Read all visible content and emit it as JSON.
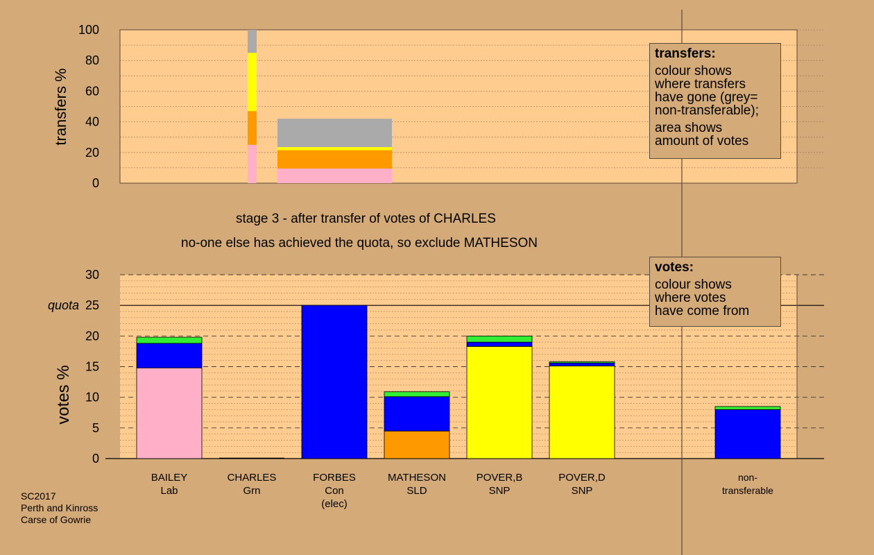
{
  "captions": {
    "stage": "stage 3 - after transfer of votes of CHARLES",
    "action": "no-one else has achieved the quota, so exclude MATHESON"
  },
  "footer": {
    "lines": [
      "SC2017",
      "Perth and Kinross",
      "Carse of Gowrie"
    ]
  },
  "legend_transfers": {
    "title": "transfers:",
    "para1": [
      "colour shows",
      "where transfers",
      "have gone (grey=",
      "non-transferable);"
    ],
    "para2": [
      "area shows",
      "amount of votes"
    ]
  },
  "legend_votes": {
    "title": "votes:",
    "lines": [
      "colour shows",
      "where votes",
      "have come from"
    ]
  },
  "colors": {
    "background": "#d4aa78",
    "plot_area": "#ffcc90",
    "pink": "#ffb0c8",
    "blue": "#0000ff",
    "green": "#33ee33",
    "orange": "#ff9900",
    "yellow": "#ffff00",
    "grey": "#aaaaaa"
  },
  "chart_data": [
    {
      "type": "bar",
      "chart": "transfers",
      "ylabel": "transfers %",
      "ylim": [
        0,
        100
      ],
      "yticks": [
        0,
        20,
        40,
        60,
        80,
        100
      ],
      "bars": [
        {
          "name": "narrow-transfer-bar",
          "segments": [
            {
              "color": "pink",
              "from": 0,
              "to": 25
            },
            {
              "color": "orange",
              "from": 25,
              "to": 47
            },
            {
              "color": "yellow",
              "from": 47,
              "to": 85
            },
            {
              "color": "grey",
              "from": 85,
              "to": 100
            }
          ]
        },
        {
          "name": "wide-transfer-bar",
          "segments": [
            {
              "color": "pink",
              "from": 0,
              "to": 9.5
            },
            {
              "color": "orange",
              "from": 9.5,
              "to": 21.5
            },
            {
              "color": "yellow",
              "from": 21.5,
              "to": 23.5
            },
            {
              "color": "grey",
              "from": 23.5,
              "to": 42
            }
          ]
        }
      ]
    },
    {
      "type": "bar",
      "chart": "votes",
      "ylabel": "votes %",
      "ylim": [
        0,
        30
      ],
      "yticks": [
        0,
        5,
        10,
        15,
        20,
        25,
        30
      ],
      "quota": {
        "label": "quota",
        "value": 25
      },
      "categories": [
        {
          "lines": [
            "BAILEY",
            "Lab"
          ],
          "segments": [
            {
              "color": "pink",
              "value": 14.8
            },
            {
              "color": "blue",
              "value": 4.0
            },
            {
              "color": "green",
              "value": 1.0
            }
          ]
        },
        {
          "lines": [
            "CHARLES",
            "Grn"
          ],
          "segments": []
        },
        {
          "lines": [
            "FORBES",
            "Con",
            "(elec)"
          ],
          "segments": [
            {
              "color": "blue",
              "value": 25.0
            }
          ]
        },
        {
          "lines": [
            "MATHESON",
            "SLD"
          ],
          "segments": [
            {
              "color": "orange",
              "value": 4.5
            },
            {
              "color": "blue",
              "value": 5.6
            },
            {
              "color": "green",
              "value": 0.8
            }
          ]
        },
        {
          "lines": [
            "POVER,B",
            "SNP"
          ],
          "segments": [
            {
              "color": "yellow",
              "value": 18.3
            },
            {
              "color": "blue",
              "value": 0.7
            },
            {
              "color": "green",
              "value": 1.0
            }
          ]
        },
        {
          "lines": [
            "POVER,D",
            "SNP"
          ],
          "segments": [
            {
              "color": "yellow",
              "value": 15.1
            },
            {
              "color": "blue",
              "value": 0.5
            },
            {
              "color": "green",
              "value": 0.2
            }
          ]
        },
        {
          "lines": [
            "",
            ""
          ],
          "segments": []
        },
        {
          "lines": [
            "non-",
            "transferable"
          ],
          "segments": [
            {
              "color": "blue",
              "value": 8.0
            },
            {
              "color": "green",
              "value": 0.5
            }
          ]
        }
      ]
    }
  ]
}
